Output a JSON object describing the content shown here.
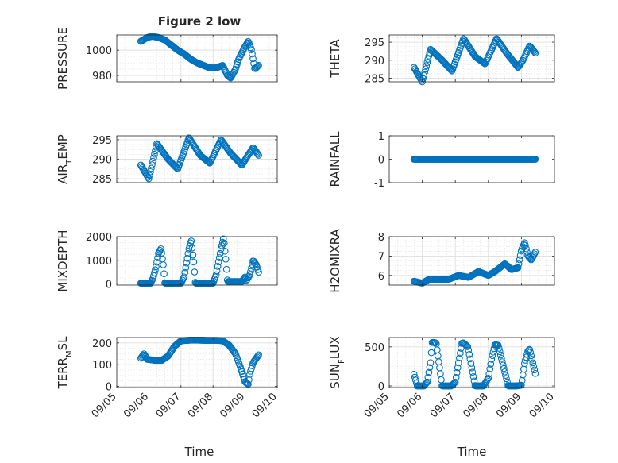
{
  "figure": {
    "title": "Figure 2 low",
    "xlabel": "Time",
    "marker_color": "#0072BD",
    "axes_color": "#262626",
    "grid_color": "#dfdfdf"
  },
  "chart_data": [
    {
      "type": "scatter",
      "panel": "top-left",
      "ylabel": "PRESSURE",
      "ylim": [
        975,
        1012
      ],
      "yticks": [
        980,
        1000
      ],
      "ytick_labels": [
        "980",
        "1000"
      ],
      "xtick_labels": [],
      "grid": true,
      "marker": "circle-open",
      "x_start": 0.75,
      "x_end": 4.42,
      "keyframes_x": [
        0.75,
        0.95,
        1.1,
        1.3,
        1.5,
        1.7,
        1.9,
        2.1,
        2.3,
        2.5,
        2.7,
        2.9,
        3.1,
        3.3,
        3.45,
        3.55,
        3.7,
        3.8,
        3.9,
        4.0,
        4.1,
        4.2,
        4.3,
        4.42
      ],
      "keyframes_y": [
        1007,
        1010,
        1011,
        1010,
        1008,
        1004,
        1000,
        997,
        993,
        990,
        988,
        986,
        986,
        988,
        980,
        978,
        985,
        993,
        998,
        1003,
        1007,
        1000,
        985,
        988
      ]
    },
    {
      "type": "scatter",
      "panel": "top-right",
      "ylabel": "THETA",
      "ylim": [
        284,
        297
      ],
      "yticks": [
        285,
        290,
        295
      ],
      "ytick_labels": [
        "285",
        "290",
        "295"
      ],
      "xtick_labels": [],
      "grid": true,
      "marker": "circle-open",
      "x_start": 0.75,
      "x_end": 4.42,
      "keyframes_x": [
        0.75,
        1.0,
        1.25,
        1.6,
        1.9,
        2.25,
        2.6,
        2.9,
        3.25,
        3.55,
        3.9,
        4.05,
        4.25,
        4.42
      ],
      "keyframes_y": [
        288,
        284,
        293,
        290,
        287,
        296,
        291,
        289,
        296,
        292,
        288,
        290,
        294,
        292
      ]
    },
    {
      "type": "scatter",
      "panel": "row2-left",
      "ylabel": "AIR_TEMP",
      "ylim": [
        284,
        296
      ],
      "yticks": [
        285,
        290,
        295
      ],
      "ytick_labels": [
        "285",
        "290",
        "295"
      ],
      "xtick_labels": [],
      "grid": true,
      "marker": "circle-open",
      "x_start": 0.75,
      "x_end": 4.42,
      "keyframes_x": [
        0.75,
        1.0,
        1.25,
        1.6,
        1.9,
        2.25,
        2.6,
        2.9,
        3.25,
        3.55,
        3.9,
        4.05,
        4.25,
        4.42
      ],
      "keyframes_y": [
        288.5,
        285,
        294,
        290,
        287.5,
        295.5,
        291,
        289,
        295,
        291.5,
        288.5,
        290.5,
        293,
        291
      ]
    },
    {
      "type": "scatter",
      "panel": "row2-right",
      "ylabel": "RAINFALL",
      "ylim": [
        -1,
        1
      ],
      "yticks": [
        -1,
        0,
        1
      ],
      "ytick_labels": [
        "-1",
        "0",
        "1"
      ],
      "xtick_labels": [],
      "grid": false,
      "marker": "circle-open",
      "x_start": 0.75,
      "x_end": 4.42,
      "keyframes_x": [
        0.75,
        4.42
      ],
      "keyframes_y": [
        0,
        0
      ]
    },
    {
      "type": "scatter",
      "panel": "row3-left",
      "ylabel": "MIXDEPTH",
      "ylim": [
        -50,
        2000
      ],
      "yticks": [
        0,
        1000,
        2000
      ],
      "ytick_labels": [
        "0",
        "1000",
        "2000"
      ],
      "xtick_labels": [],
      "grid": true,
      "marker": "circle-open",
      "x_start": 0.75,
      "x_end": 4.42,
      "keyframes_x": [
        0.75,
        1.05,
        1.12,
        1.22,
        1.3,
        1.38,
        1.45,
        1.5,
        1.6,
        2.0,
        2.1,
        2.25,
        2.32,
        2.4,
        2.45,
        2.55,
        3.0,
        3.1,
        3.25,
        3.33,
        3.4,
        3.45,
        3.55,
        3.9,
        4.0,
        4.05,
        4.15,
        4.25,
        4.35,
        4.42
      ],
      "keyframes_y": [
        30,
        30,
        200,
        700,
        1300,
        1500,
        800,
        30,
        30,
        30,
        300,
        1500,
        1850,
        900,
        30,
        30,
        30,
        400,
        1500,
        1950,
        1000,
        100,
        100,
        100,
        300,
        150,
        400,
        1000,
        800,
        500
      ]
    },
    {
      "type": "scatter",
      "panel": "row3-right",
      "ylabel": "H2OMIXRA",
      "ylim": [
        5.5,
        8
      ],
      "yticks": [
        6,
        7,
        8
      ],
      "ytick_labels": [
        "6",
        "7",
        "8"
      ],
      "xtick_labels": [],
      "grid": true,
      "marker": "circle-open",
      "x_start": 0.75,
      "x_end": 4.42,
      "keyframes_x": [
        0.75,
        1.0,
        1.2,
        1.5,
        1.8,
        2.1,
        2.4,
        2.7,
        3.0,
        3.2,
        3.5,
        3.7,
        3.9,
        4.0,
        4.1,
        4.2,
        4.3,
        4.42
      ],
      "keyframes_y": [
        5.7,
        5.6,
        5.8,
        5.8,
        5.8,
        6.0,
        5.9,
        6.2,
        6.0,
        6.2,
        6.6,
        6.3,
        6.4,
        7.3,
        7.7,
        7.0,
        6.8,
        7.2
      ]
    },
    {
      "type": "scatter",
      "panel": "bottom-left",
      "ylabel": "TERR_MSL",
      "ylim": [
        -5,
        225
      ],
      "yticks": [
        0,
        100,
        200
      ],
      "ytick_labels": [
        "0",
        "100",
        "200"
      ],
      "xtick_labels": [
        "09/05",
        "09/06",
        "09/07",
        "09/08",
        "09/09",
        "09/10"
      ],
      "grid": true,
      "marker": "circle-open",
      "x_start": 0.75,
      "x_end": 4.42,
      "keyframes_x": [
        0.75,
        0.85,
        0.95,
        1.2,
        1.4,
        1.6,
        1.8,
        2.0,
        2.3,
        2.5,
        2.8,
        3.1,
        3.3,
        3.5,
        3.7,
        3.85,
        4.0,
        4.1,
        4.15,
        4.25,
        4.42
      ],
      "keyframes_y": [
        130,
        150,
        125,
        120,
        120,
        140,
        185,
        210,
        213,
        213,
        212,
        212,
        210,
        190,
        150,
        90,
        20,
        10,
        60,
        110,
        145
      ]
    },
    {
      "type": "scatter",
      "panel": "bottom-right",
      "ylabel": "SUN_FLUX",
      "ylim": [
        -20,
        620
      ],
      "yticks": [
        0,
        500
      ],
      "ytick_labels": [
        "0",
        "500"
      ],
      "xtick_labels": [
        "09/05",
        "09/06",
        "09/07",
        "09/08",
        "09/09",
        "09/10"
      ],
      "grid": true,
      "marker": "circle-open",
      "x_start": 0.75,
      "x_end": 4.42,
      "keyframes_x": [
        0.75,
        0.85,
        1.05,
        1.15,
        1.25,
        1.3,
        1.42,
        1.6,
        1.88,
        2.0,
        2.1,
        2.2,
        2.25,
        2.38,
        2.6,
        2.85,
        3.0,
        3.1,
        3.2,
        3.3,
        3.6,
        3.85,
        4.0,
        4.1,
        4.2,
        4.25,
        4.42
      ],
      "keyframes_y": [
        150,
        0,
        0,
        50,
        300,
        560,
        550,
        0,
        0,
        50,
        300,
        550,
        550,
        500,
        0,
        0,
        100,
        350,
        530,
        520,
        0,
        0,
        10,
        300,
        450,
        470,
        160
      ]
    }
  ]
}
